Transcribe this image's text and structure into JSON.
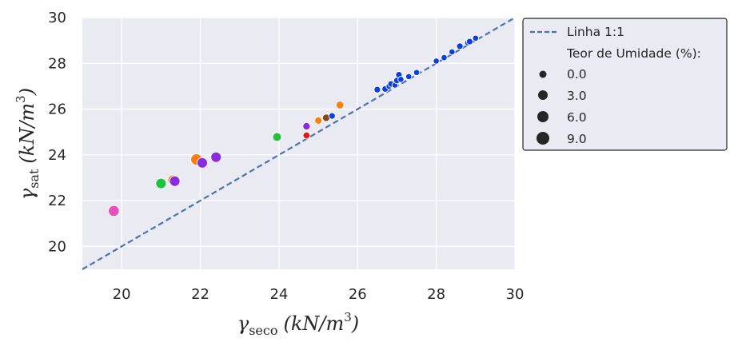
{
  "chart_data": {
    "type": "scatter",
    "xlabel": {
      "sym": "γ",
      "sub": "seco",
      "units": "(kN/m",
      "sup": "3",
      "close": ")"
    },
    "ylabel": {
      "sym": "γ",
      "sub": "sat",
      "units": "(kN/m",
      "sup": "3",
      "close": ")"
    },
    "xlim": [
      19,
      30
    ],
    "ylim": [
      19,
      30
    ],
    "xticks": [
      "20",
      "22",
      "24",
      "26",
      "28",
      "30"
    ],
    "yticks": [
      "20",
      "22",
      "24",
      "26",
      "28",
      "30"
    ],
    "grid": true,
    "legend_position": "outside-right",
    "reference_line": {
      "label": "Linha 1:1",
      "from": [
        19,
        19
      ],
      "to": [
        30,
        30
      ],
      "color": "#4c72b0",
      "style": "dashed"
    },
    "size_legend": {
      "title": "Teor de Umidade (%):",
      "entries": [
        {
          "label": "0.0",
          "value": 0.0
        },
        {
          "label": "3.0",
          "value": 3.0
        },
        {
          "label": "6.0",
          "value": 6.0
        },
        {
          "label": "9.0",
          "value": 9.0
        }
      ]
    },
    "points": [
      {
        "x": 19.8,
        "y": 21.55,
        "size": 6.0,
        "color": "#e84fb8"
      },
      {
        "x": 21.0,
        "y": 22.75,
        "size": 5.5,
        "color": "#1fc23d"
      },
      {
        "x": 21.3,
        "y": 22.9,
        "size": 5.0,
        "color": "#ff7f0e"
      },
      {
        "x": 21.35,
        "y": 22.85,
        "size": 5.5,
        "color": "#8a2be2"
      },
      {
        "x": 21.9,
        "y": 23.8,
        "size": 6.5,
        "color": "#ff7f0e"
      },
      {
        "x": 22.05,
        "y": 23.65,
        "size": 5.5,
        "color": "#8a2be2"
      },
      {
        "x": 22.4,
        "y": 23.9,
        "size": 5.5,
        "color": "#8a2be2"
      },
      {
        "x": 23.95,
        "y": 24.78,
        "size": 3.5,
        "color": "#1fc23d"
      },
      {
        "x": 24.7,
        "y": 24.85,
        "size": 1.5,
        "color": "#dd1c1c"
      },
      {
        "x": 24.7,
        "y": 25.25,
        "size": 2.0,
        "color": "#8a2be2"
      },
      {
        "x": 25.0,
        "y": 25.5,
        "size": 2.0,
        "color": "#ff7f0e"
      },
      {
        "x": 25.2,
        "y": 25.62,
        "size": 2.0,
        "color": "#8b4513"
      },
      {
        "x": 25.35,
        "y": 25.7,
        "size": 1.0,
        "color": "#0b3ee0"
      },
      {
        "x": 25.55,
        "y": 26.18,
        "size": 2.5,
        "color": "#ff7f0e"
      },
      {
        "x": 26.5,
        "y": 26.85,
        "size": 1.0,
        "color": "#0b3ee0"
      },
      {
        "x": 26.7,
        "y": 26.88,
        "size": 1.0,
        "color": "#0b3ee0"
      },
      {
        "x": 26.8,
        "y": 27.0,
        "size": 0.5,
        "color": "#0b3ee0"
      },
      {
        "x": 26.85,
        "y": 27.1,
        "size": 1.0,
        "color": "#0b3ee0"
      },
      {
        "x": 26.95,
        "y": 27.05,
        "size": 0.5,
        "color": "#0b3ee0"
      },
      {
        "x": 27.0,
        "y": 27.25,
        "size": 1.0,
        "color": "#0b3ee0"
      },
      {
        "x": 27.05,
        "y": 27.5,
        "size": 1.0,
        "color": "#0b3ee0"
      },
      {
        "x": 27.1,
        "y": 27.3,
        "size": 0.5,
        "color": "#0b3ee0"
      },
      {
        "x": 27.3,
        "y": 27.42,
        "size": 0.5,
        "color": "#0b3ee0"
      },
      {
        "x": 27.5,
        "y": 27.6,
        "size": 0.5,
        "color": "#0b3ee0"
      },
      {
        "x": 28.0,
        "y": 28.1,
        "size": 0.5,
        "color": "#0b3ee0"
      },
      {
        "x": 28.2,
        "y": 28.25,
        "size": 0.5,
        "color": "#0b3ee0"
      },
      {
        "x": 28.4,
        "y": 28.5,
        "size": 0.5,
        "color": "#0b3ee0"
      },
      {
        "x": 28.6,
        "y": 28.75,
        "size": 1.0,
        "color": "#0b3ee0"
      },
      {
        "x": 28.8,
        "y": 28.9,
        "size": 0.5,
        "color": "#0b3ee0"
      },
      {
        "x": 28.85,
        "y": 28.95,
        "size": 1.0,
        "color": "#0b3ee0"
      },
      {
        "x": 29.0,
        "y": 29.1,
        "size": 0.5,
        "color": "#0b3ee0"
      }
    ]
  }
}
